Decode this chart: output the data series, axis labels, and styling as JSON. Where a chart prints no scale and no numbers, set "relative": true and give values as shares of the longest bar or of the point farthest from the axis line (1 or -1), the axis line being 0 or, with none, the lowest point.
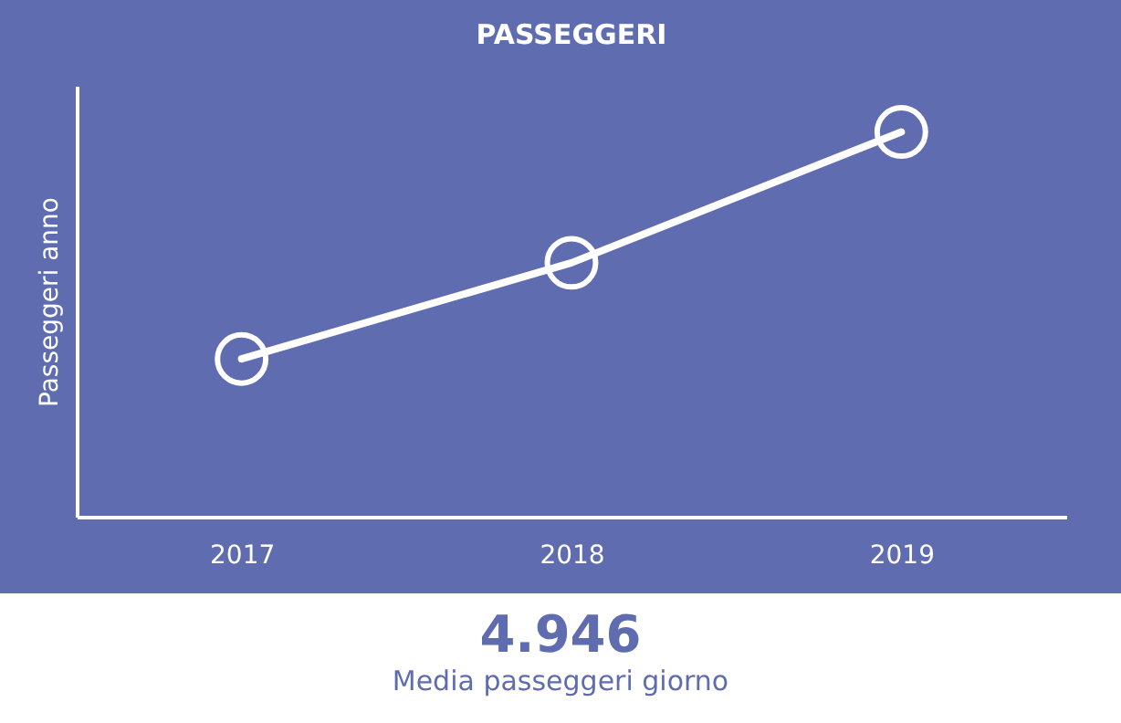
{
  "chart_data": {
    "type": "line",
    "title": "PASSEGGERI",
    "ylabel": "Passeggeri anno",
    "categories": [
      "2017",
      "2018",
      "2019"
    ],
    "series": [
      {
        "color": "#ffffff",
        "values": [
          0.41,
          0.66,
          1
        ]
      }
    ],
    "relative": true,
    "marker": "circle",
    "line_style": "solid",
    "grid": false,
    "annotations": [
      "4.946",
      "Media passeggeri giorno"
    ]
  }
}
